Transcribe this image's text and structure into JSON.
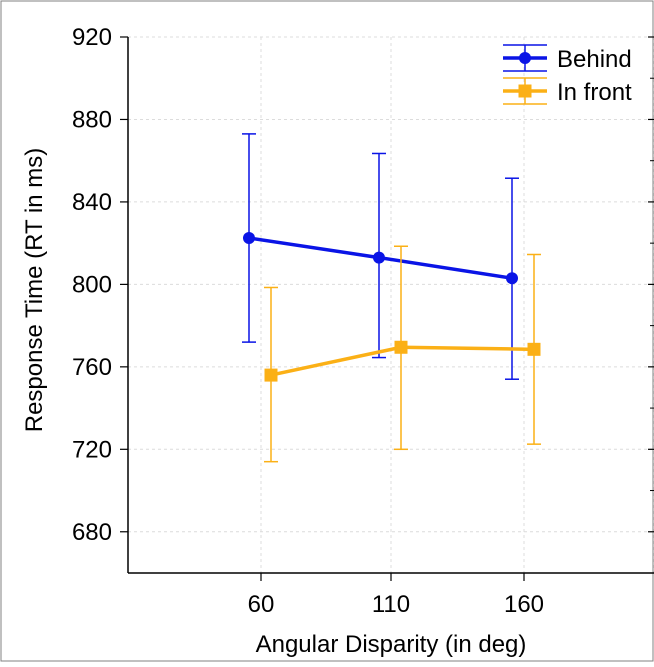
{
  "chart_data": {
    "type": "line",
    "xlabel": "Angular Disparity (in deg)",
    "ylabel": "Response Time (RT in ms)",
    "ylim": [
      660,
      920
    ],
    "y_ticks": [
      680,
      720,
      760,
      800,
      840,
      880,
      920
    ],
    "y_tick_labels": [
      "680",
      "720",
      "760",
      "800",
      "840",
      "880",
      "920"
    ],
    "categories": [
      "60",
      "110",
      "160"
    ],
    "grid": true,
    "legend_position": "top-right",
    "series": [
      {
        "name": "Behind",
        "color": "#0a14e6",
        "marker": "circle",
        "values": [
          822.5,
          813,
          803
        ],
        "error_low": [
          772,
          764.5,
          754
        ],
        "error_high": [
          873,
          863.5,
          851.5
        ]
      },
      {
        "name": "In front",
        "color": "#fbb016",
        "marker": "square",
        "values": [
          756,
          769.5,
          768.5
        ],
        "error_low": [
          714,
          720,
          722.5
        ],
        "error_high": [
          798.5,
          818.5,
          814.5
        ]
      }
    ]
  }
}
